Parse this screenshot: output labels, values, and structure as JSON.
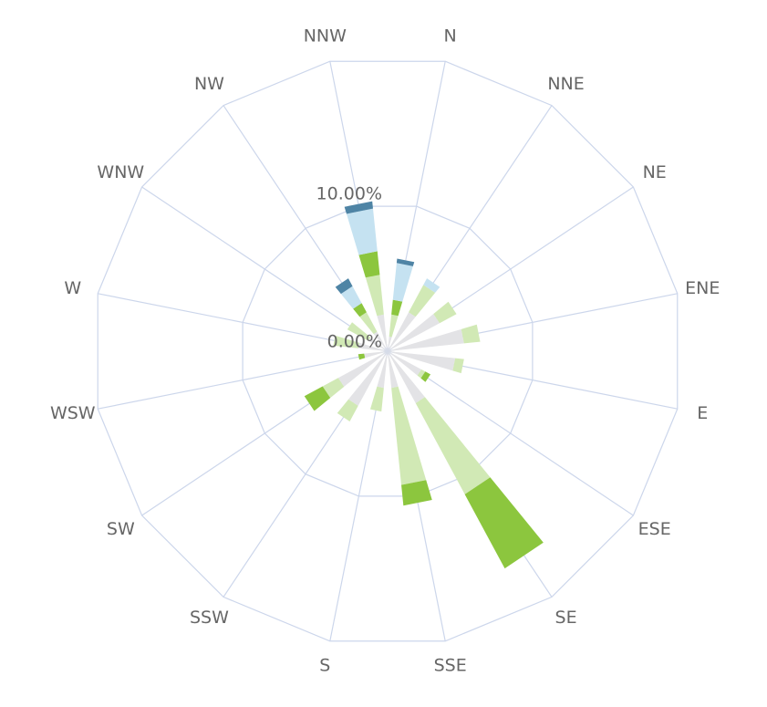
{
  "chart_data": {
    "type": "windrose",
    "categories": [
      "N",
      "NNE",
      "NE",
      "ENE",
      "E",
      "ESE",
      "SE",
      "SSE",
      "S",
      "SSW",
      "SW",
      "WSW",
      "W",
      "WNW",
      "NW",
      "NNW"
    ],
    "series": [
      {
        "color": "#e3e3e6",
        "values": [
          1.0,
          3.0,
          4.0,
          5.2,
          4.6,
          2.6,
          4.0,
          2.5,
          2.5,
          4.2,
          3.8,
          1.6,
          2.0,
          1.5,
          1.5,
          2.5
        ]
      },
      {
        "color": "#d1e9b5",
        "values": [
          1.5,
          2.1,
          1.3,
          1.1,
          0.6,
          0.3,
          7.0,
          6.6,
          1.6,
          1.2,
          1.2,
          0,
          1.7,
          1.6,
          1.5,
          2.7
        ]
      },
      {
        "color": "#8cc63e",
        "values": [
          1.0,
          0,
          0,
          0,
          0,
          0.4,
          5.7,
          1.4,
          0,
          0,
          1.4,
          0.4,
          0,
          0,
          0.7,
          1.6
        ]
      },
      {
        "color": "#c5e2f1",
        "values": [
          2.5,
          0.5,
          0,
          0,
          0,
          0,
          0,
          0,
          0,
          0,
          0,
          0,
          0,
          0,
          1.3,
          2.9
        ]
      },
      {
        "color": "#4e84a5",
        "values": [
          0.3,
          0,
          0,
          0,
          0,
          0,
          0,
          0,
          0,
          0,
          0,
          0,
          0,
          0,
          0.6,
          0.5
        ]
      }
    ],
    "ylim": [
      0,
      20
    ],
    "yticks": [
      {
        "value": 0,
        "label": "0.00%"
      },
      {
        "value": 10,
        "label": "10.00%"
      }
    ],
    "grid": true
  }
}
